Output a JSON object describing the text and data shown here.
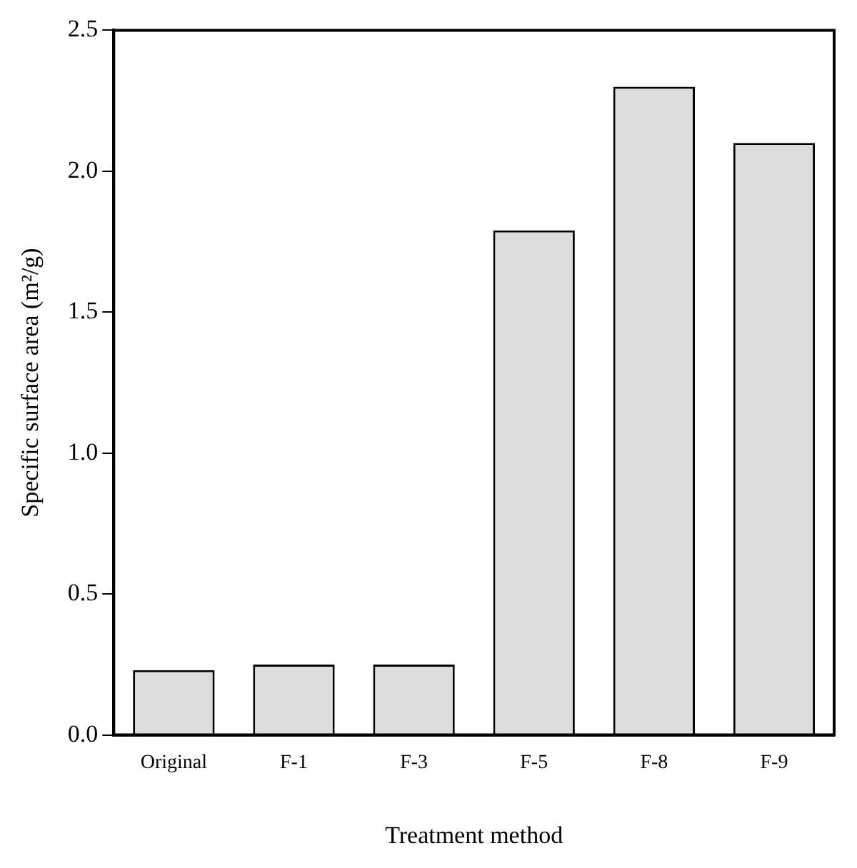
{
  "chart_data": {
    "type": "bar",
    "xlabel": "Treatment method",
    "ylabel": "Specific surface area (m²/g)",
    "categories": [
      "Original",
      "F-1",
      "F-3",
      "F-5",
      "F-8",
      "F-9"
    ],
    "values": [
      0.23,
      0.25,
      0.25,
      1.79,
      2.3,
      2.1
    ],
    "color": "#dcdcdc",
    "ylim": [
      0,
      2.5
    ],
    "yticks": [
      {
        "value": 0,
        "label": "0.0"
      },
      {
        "value": 0.5,
        "label": "0.5"
      },
      {
        "value": 1,
        "label": "1.0"
      },
      {
        "value": 1.5,
        "label": "1.5"
      },
      {
        "value": 2,
        "label": "2.0"
      },
      {
        "value": 2.5,
        "label": "2.5"
      }
    ],
    "grid": false,
    "legend": false
  }
}
